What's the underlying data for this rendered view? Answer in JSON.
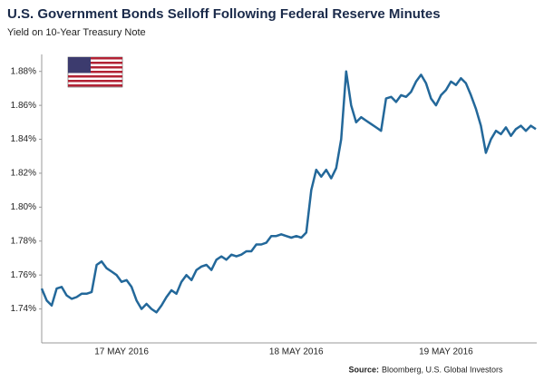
{
  "chart_data": {
    "type": "line",
    "title": "U.S. Government Bonds Selloff Following Federal Reserve Minutes",
    "subtitle": "Yield on 10-Year Treasury Note",
    "source_label": "Source:",
    "source": "Bloomberg, U.S. Global Investors",
    "categories": [
      null,
      null,
      null,
      null,
      null,
      null,
      null,
      null,
      null,
      null,
      null,
      null,
      null,
      null,
      null,
      null,
      "17 MAY 2016",
      null,
      null,
      null,
      null,
      null,
      null,
      null,
      null,
      null,
      null,
      null,
      null,
      null,
      null,
      null,
      null,
      null,
      null,
      null,
      null,
      null,
      null,
      null,
      null,
      null,
      null,
      null,
      null,
      null,
      null,
      null,
      null,
      null,
      null,
      "18 MAY 2016",
      null,
      null,
      null,
      null,
      null,
      null,
      null,
      null,
      null,
      null,
      null,
      null,
      null,
      null,
      null,
      null,
      null,
      null,
      null,
      null,
      null,
      null,
      null,
      null,
      null,
      null,
      null,
      null,
      null,
      "19 MAY 2016",
      null,
      null,
      null,
      null,
      null,
      null,
      null,
      null,
      null,
      null,
      null,
      null,
      null,
      null,
      null,
      null,
      null,
      null
    ],
    "series": [
      {
        "name": "Yield on 10-Year Treasury Note",
        "color": "#23689a",
        "values": [
          1.752,
          1.745,
          1.742,
          1.752,
          1.753,
          1.748,
          1.746,
          1.747,
          1.749,
          1.749,
          1.75,
          1.766,
          1.768,
          1.764,
          1.762,
          1.76,
          1.756,
          1.757,
          1.753,
          1.745,
          1.74,
          1.743,
          1.74,
          1.738,
          1.742,
          1.747,
          1.751,
          1.749,
          1.756,
          1.76,
          1.757,
          1.763,
          1.765,
          1.766,
          1.763,
          1.769,
          1.771,
          1.769,
          1.772,
          1.771,
          1.772,
          1.774,
          1.774,
          1.778,
          1.778,
          1.779,
          1.783,
          1.783,
          1.784,
          1.783,
          1.782,
          1.783,
          1.782,
          1.785,
          1.81,
          1.822,
          1.818,
          1.822,
          1.817,
          1.823,
          1.84,
          1.88,
          1.86,
          1.85,
          1.853,
          1.851,
          1.849,
          1.847,
          1.845,
          1.864,
          1.865,
          1.862,
          1.866,
          1.865,
          1.868,
          1.874,
          1.878,
          1.873,
          1.864,
          1.86,
          1.866,
          1.869,
          1.874,
          1.872,
          1.876,
          1.873,
          1.866,
          1.858,
          1.848,
          1.832,
          1.84,
          1.845,
          1.843,
          1.847,
          1.842,
          1.846,
          1.848,
          1.845,
          1.848,
          1.846
        ]
      }
    ],
    "ylim": [
      1.72,
      1.89
    ],
    "yticks": [
      {
        "value": 1.74,
        "label": "1.74%"
      },
      {
        "value": 1.76,
        "label": "1.76%"
      },
      {
        "value": 1.78,
        "label": "1.78%"
      },
      {
        "value": 1.8,
        "label": "1.80%"
      },
      {
        "value": 1.82,
        "label": "1.82%"
      },
      {
        "value": 1.84,
        "label": "1.84%"
      },
      {
        "value": 1.86,
        "label": "1.86%"
      },
      {
        "value": 1.88,
        "label": "1.88%"
      }
    ]
  }
}
